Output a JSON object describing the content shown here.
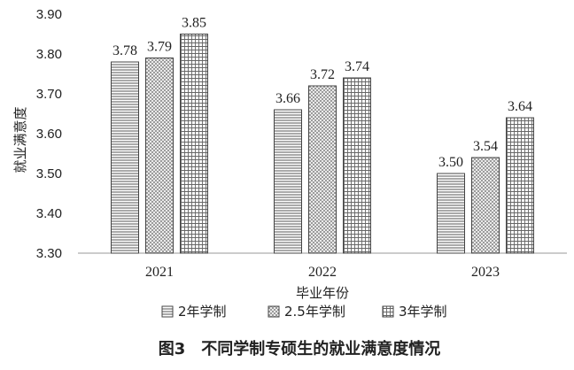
{
  "chart_data": {
    "type": "bar",
    "categories": [
      "2021",
      "2022",
      "2023"
    ],
    "series": [
      {
        "name": "2年学制",
        "values": [
          3.78,
          3.66,
          3.5
        ],
        "pattern": "horizontal-lines"
      },
      {
        "name": "2.5年学制",
        "values": [
          3.79,
          3.72,
          3.54
        ],
        "pattern": "crosshatch-dots"
      },
      {
        "name": "3年学制",
        "values": [
          3.85,
          3.74,
          3.64
        ],
        "pattern": "grid"
      }
    ],
    "xlabel": "毕业年份",
    "ylabel": "就业满意度",
    "ylim": [
      3.3,
      3.9
    ],
    "yticks": [
      "3.30",
      "3.40",
      "3.50",
      "3.60",
      "3.70",
      "3.80",
      "3.90"
    ],
    "grid": false,
    "legend_position": "bottom",
    "caption": "图3　不同学制专硕生的就业满意度情况"
  }
}
